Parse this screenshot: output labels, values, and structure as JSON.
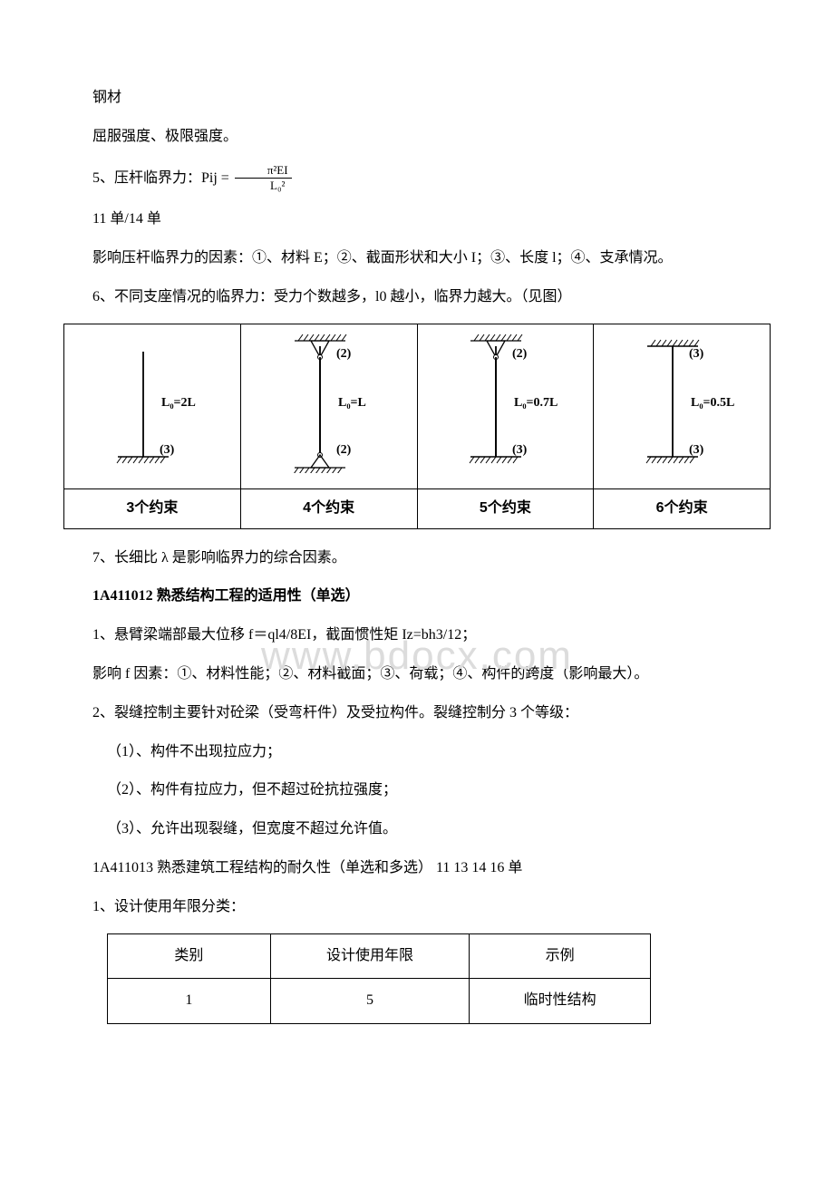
{
  "watermark": "www.bdocx.com",
  "p1": "钢材",
  "p2": "屈服强度、极限强度。",
  "p3_prefix": "5、压杆临界力：Pij =",
  "p3_num": "π²EI",
  "p3_den": "L₀²",
  "p4": "11 单/14 单",
  "p5": "影响压杆临界力的因素：①、材料 E；②、截面形状和大小 I；③、长度 l；④、支承情况。",
  "p6": "6、不同支座情况的临界力：受力个数越多，l0 越小，临界力越大。（见图）",
  "diagram": {
    "cols": [
      {
        "top_fixed": false,
        "top_pin": false,
        "top_count": "",
        "lo": "L₀=2L",
        "bottom_count": "(3)",
        "bottom_fixed": true,
        "bottom_pin": false,
        "label": "3个约束"
      },
      {
        "top_fixed": true,
        "top_pin": true,
        "top_count": "(2)",
        "lo": "L₀=L",
        "bottom_count": "(2)",
        "bottom_fixed": true,
        "bottom_pin": true,
        "label": "4个约束"
      },
      {
        "top_fixed": true,
        "top_pin": true,
        "top_count": "(2)",
        "lo": "L₀=0.7L",
        "bottom_count": "(3)",
        "bottom_fixed": true,
        "bottom_pin": false,
        "label": "5个约束"
      },
      {
        "top_fixed": true,
        "top_pin": false,
        "top_count": "(3)",
        "lo": "L₀=0.5L",
        "bottom_count": "(3)",
        "bottom_fixed": true,
        "bottom_pin": false,
        "label": "6个约束"
      }
    ]
  },
  "p7": "7、长细比 λ 是影响临界力的综合因素。",
  "h1": "1A411012 熟悉结构工程的适用性（单选）",
  "p8": "1、悬臂梁端部最大位移 f＝ql4/8EI，截面惯性矩 Iz=bh3/12；",
  "p9": "影响 f 因素：①、材料性能；②、材料截面；③、荷载；④、构件的跨度（影响最大）。",
  "p10": "2、裂缝控制主要针对砼梁（受弯杆件）及受拉构件。裂缝控制分 3 个等级：",
  "p11": "（1）、构件不出现拉应力；",
  "p12": "（2）、构件有拉应力，但不超过砼抗拉强度；",
  "p13": "（3）、允许出现裂缝，但宽度不超过允许值。",
  "p14": "1A411013 熟悉建筑工程结构的耐久性（单选和多选） 11 13 14 16 单",
  "p15": "1、设计使用年限分类：",
  "table": {
    "headers": [
      "类别",
      "设计使用年限",
      "示例"
    ],
    "rows": [
      [
        "1",
        "5",
        "临时性结构"
      ]
    ]
  }
}
